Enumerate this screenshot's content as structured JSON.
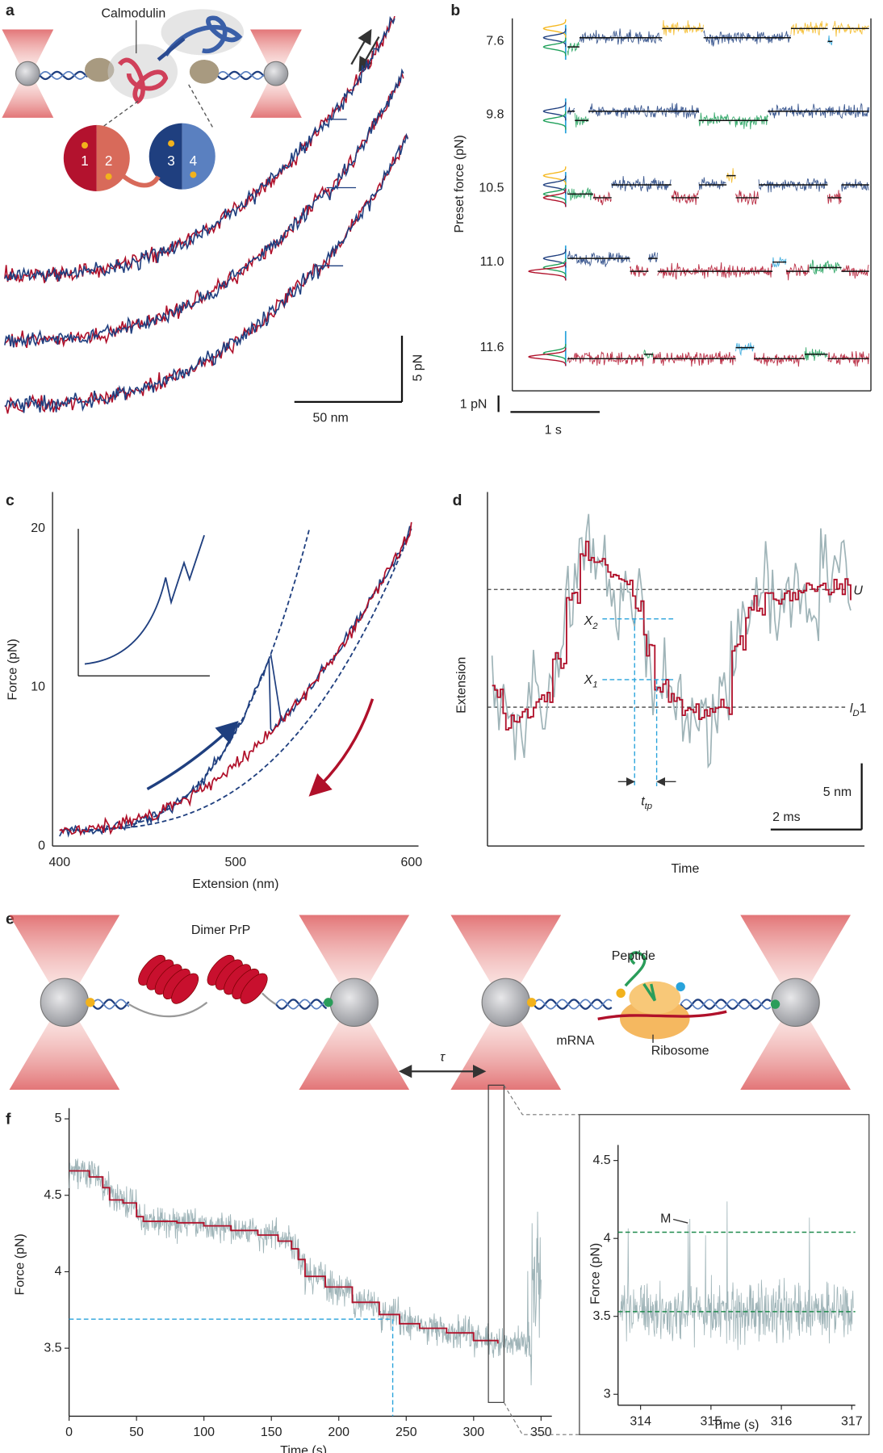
{
  "panel_a": {
    "label": "a",
    "protein": "Calmodulin",
    "domains": [
      "1",
      "2",
      "3",
      "4"
    ],
    "scale_x": "50 nm",
    "scale_y": "5 pN"
  },
  "panel_b": {
    "label": "b",
    "ylabel": "Preset force (pN)",
    "rows": [
      "7.6",
      "9.8",
      "10.5",
      "11.0",
      "11.6"
    ],
    "scale_y": "1 pN",
    "scale_x": "1 s"
  },
  "panel_c": {
    "label": "c",
    "type": "line",
    "xlabel": "Extension (nm)",
    "ylabel": "Force (pN)",
    "xlim": [
      396,
      604
    ],
    "xticks": [
      400,
      500,
      600
    ],
    "ylim": [
      0,
      22.3
    ],
    "yticks": [
      0,
      10,
      20
    ]
  },
  "panel_d": {
    "label": "d",
    "xlabel": "Time",
    "ylabel": "Extension",
    "upper": "U",
    "lower": {
      "main": "l",
      "sub": "D",
      "tail": "1"
    },
    "x2": {
      "main": "X",
      "sub": "2"
    },
    "x1": {
      "main": "X",
      "sub": "1"
    },
    "ttp": {
      "main": "t",
      "sub": "tp"
    },
    "scale_y": "5 nm",
    "scale_x": "2 ms"
  },
  "panel_e": {
    "label": "e",
    "left": "Dimer PrP",
    "peptide": "Peptide",
    "mrna": "mRNA",
    "ribosome": "Ribosome"
  },
  "panel_f": {
    "label": "f",
    "type": "line",
    "xlabel": "Time (s)",
    "ylabel": "Force (pN)",
    "xlim": [
      0,
      358
    ],
    "xticks": [
      0,
      50,
      100,
      150,
      200,
      250,
      300,
      350
    ],
    "ylim": [
      3.055,
      5.07
    ],
    "yticks": [
      3.5,
      4,
      4.5,
      5
    ],
    "fit": {
      "x": [
        0,
        12,
        15,
        25,
        30,
        40,
        50,
        55,
        80,
        100,
        120,
        140,
        150,
        155,
        165,
        170,
        175,
        190,
        210,
        230,
        245,
        260,
        280,
        300,
        318
      ],
      "values": [
        4.66,
        4.66,
        4.62,
        4.55,
        4.47,
        4.45,
        4.36,
        4.33,
        4.32,
        4.3,
        4.27,
        4.24,
        4.24,
        4.2,
        4.15,
        4.08,
        3.97,
        3.9,
        3.8,
        3.72,
        3.66,
        3.63,
        3.6,
        3.55,
        3.53
      ]
    },
    "threshold": 3.69,
    "threshold_time": 240,
    "tau": "τ",
    "inset": {
      "xlabel": "Time (s)",
      "ylabel": "Force (pN)",
      "xlim": [
        313.68,
        317.05
      ],
      "xticks": [
        314,
        315,
        316,
        317
      ],
      "ylim": [
        2.93,
        4.6
      ],
      "yticks": [
        3,
        3.5,
        4,
        4.5
      ],
      "levels": [
        4.04,
        3.53
      ],
      "marker": "M"
    }
  }
}
